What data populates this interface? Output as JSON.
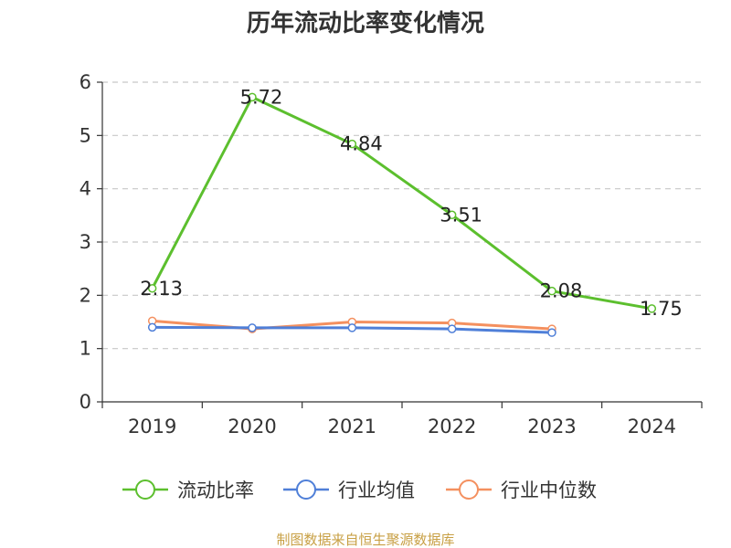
{
  "chart_data": {
    "type": "line",
    "title": "历年流动比率变化情况",
    "categories": [
      "2019",
      "2020",
      "2021",
      "2022",
      "2023",
      "2024"
    ],
    "ylim": [
      0,
      6
    ],
    "yticks": [
      "0",
      "1",
      "2",
      "3",
      "4",
      "5",
      "6"
    ],
    "grid": true,
    "legend_position": "bottom",
    "series": [
      {
        "name": "流动比率",
        "color": "#5cbf2e",
        "values": [
          2.13,
          5.72,
          4.84,
          3.51,
          2.08,
          1.75
        ],
        "labels": [
          "2.13",
          "5.72",
          "4.84",
          "3.51",
          "2.08",
          "1.75"
        ]
      },
      {
        "name": "行业均值",
        "color": "#4f7fd8",
        "values": [
          1.4,
          1.39,
          1.39,
          1.37,
          1.3,
          null
        ]
      },
      {
        "name": "行业中位数",
        "color": "#f4905f",
        "values": [
          1.52,
          1.37,
          1.5,
          1.48,
          1.37,
          null
        ]
      }
    ],
    "source": "制图数据来自恒生聚源数据库",
    "source_color": "#c8a045"
  }
}
